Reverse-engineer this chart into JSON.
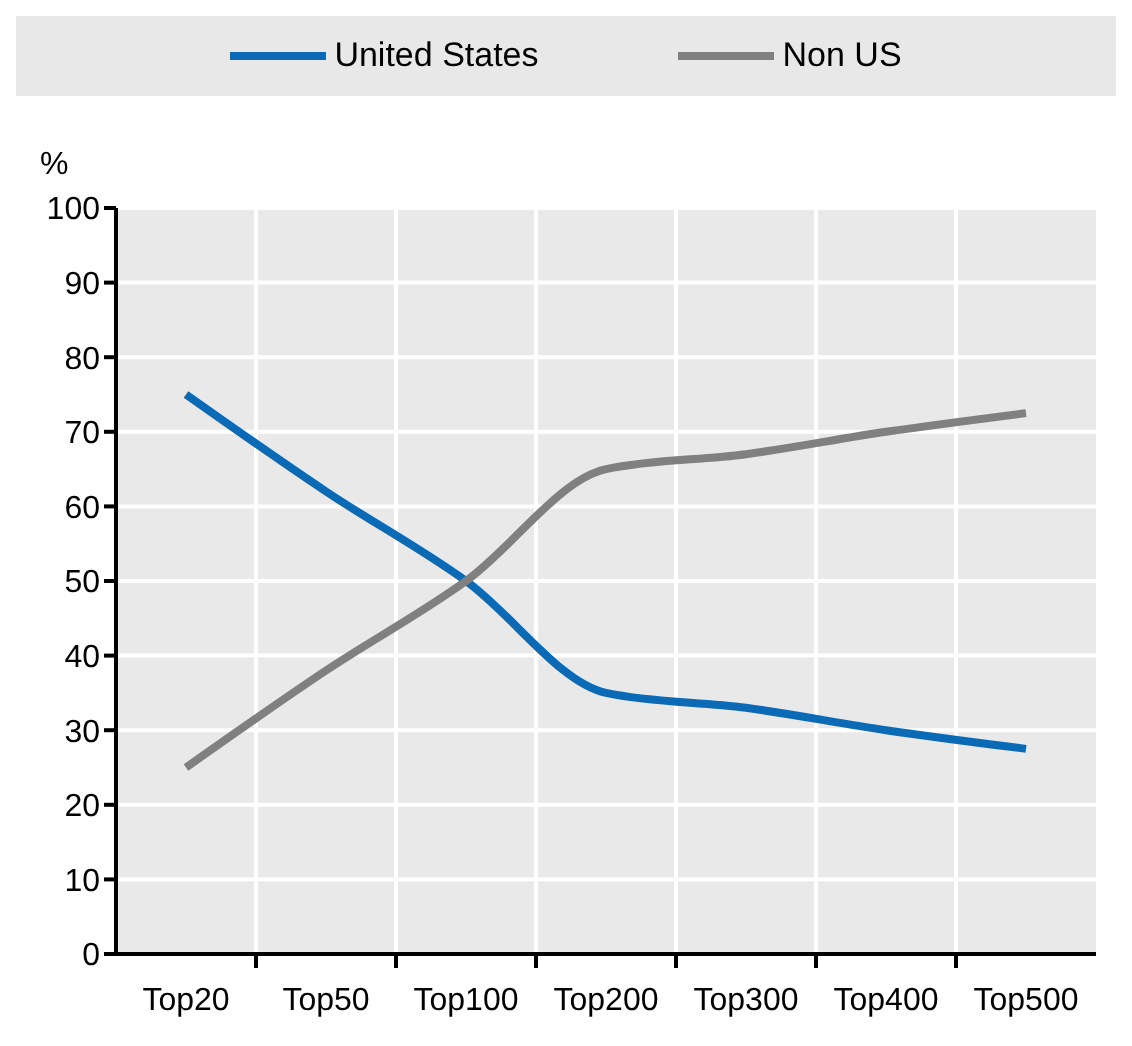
{
  "chart_data": {
    "type": "line",
    "ylabel": "%",
    "categories": [
      "Top20",
      "Top50",
      "Top100",
      "Top200",
      "Top300",
      "Top400",
      "Top500"
    ],
    "series": [
      {
        "name": "United States",
        "color": "#0a6ab6",
        "values": [
          75,
          62,
          50,
          35,
          33,
          30,
          27.5
        ]
      },
      {
        "name": "Non US",
        "color": "#808080",
        "values": [
          25,
          38,
          50,
          65,
          67,
          70,
          72.5
        ]
      }
    ],
    "ylim": [
      0,
      100
    ],
    "yticks": [
      0,
      10,
      20,
      30,
      40,
      50,
      60,
      70,
      80,
      90,
      100
    ],
    "grid": true,
    "legend": "top",
    "marker": "none",
    "line_style": "solid"
  }
}
